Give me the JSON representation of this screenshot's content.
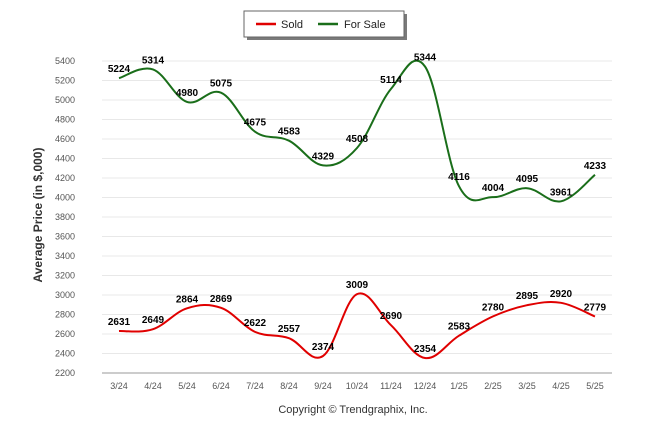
{
  "chart_data": {
    "type": "line",
    "categories": [
      "3/24",
      "4/24",
      "5/24",
      "6/24",
      "7/24",
      "8/24",
      "9/24",
      "10/24",
      "11/24",
      "12/24",
      "1/25",
      "2/25",
      "3/25",
      "4/25",
      "5/25"
    ],
    "series": [
      {
        "name": "Sold",
        "color": "#e00000",
        "values": [
          2631,
          2649,
          2864,
          2869,
          2622,
          2557,
          2374,
          3009,
          2690,
          2354,
          2583,
          2780,
          2895,
          2920,
          2779
        ]
      },
      {
        "name": "For Sale",
        "color": "#1a6e1a",
        "values": [
          5224,
          5314,
          4980,
          5075,
          4675,
          4583,
          4329,
          4508,
          5114,
          5344,
          4116,
          4004,
          4095,
          3961,
          4233
        ]
      }
    ],
    "ylabel": "Average Price (in $,000)",
    "xlabel": "",
    "ylim": [
      2200,
      5400
    ],
    "yticks": [
      2200,
      2400,
      2600,
      2800,
      3000,
      3200,
      3400,
      3600,
      3800,
      4000,
      4200,
      4400,
      4600,
      4800,
      5000,
      5200,
      5400
    ],
    "grid": true,
    "legend_position": "top-center"
  },
  "footer": {
    "copyright": "Copyright © Trendgraphix, Inc."
  }
}
